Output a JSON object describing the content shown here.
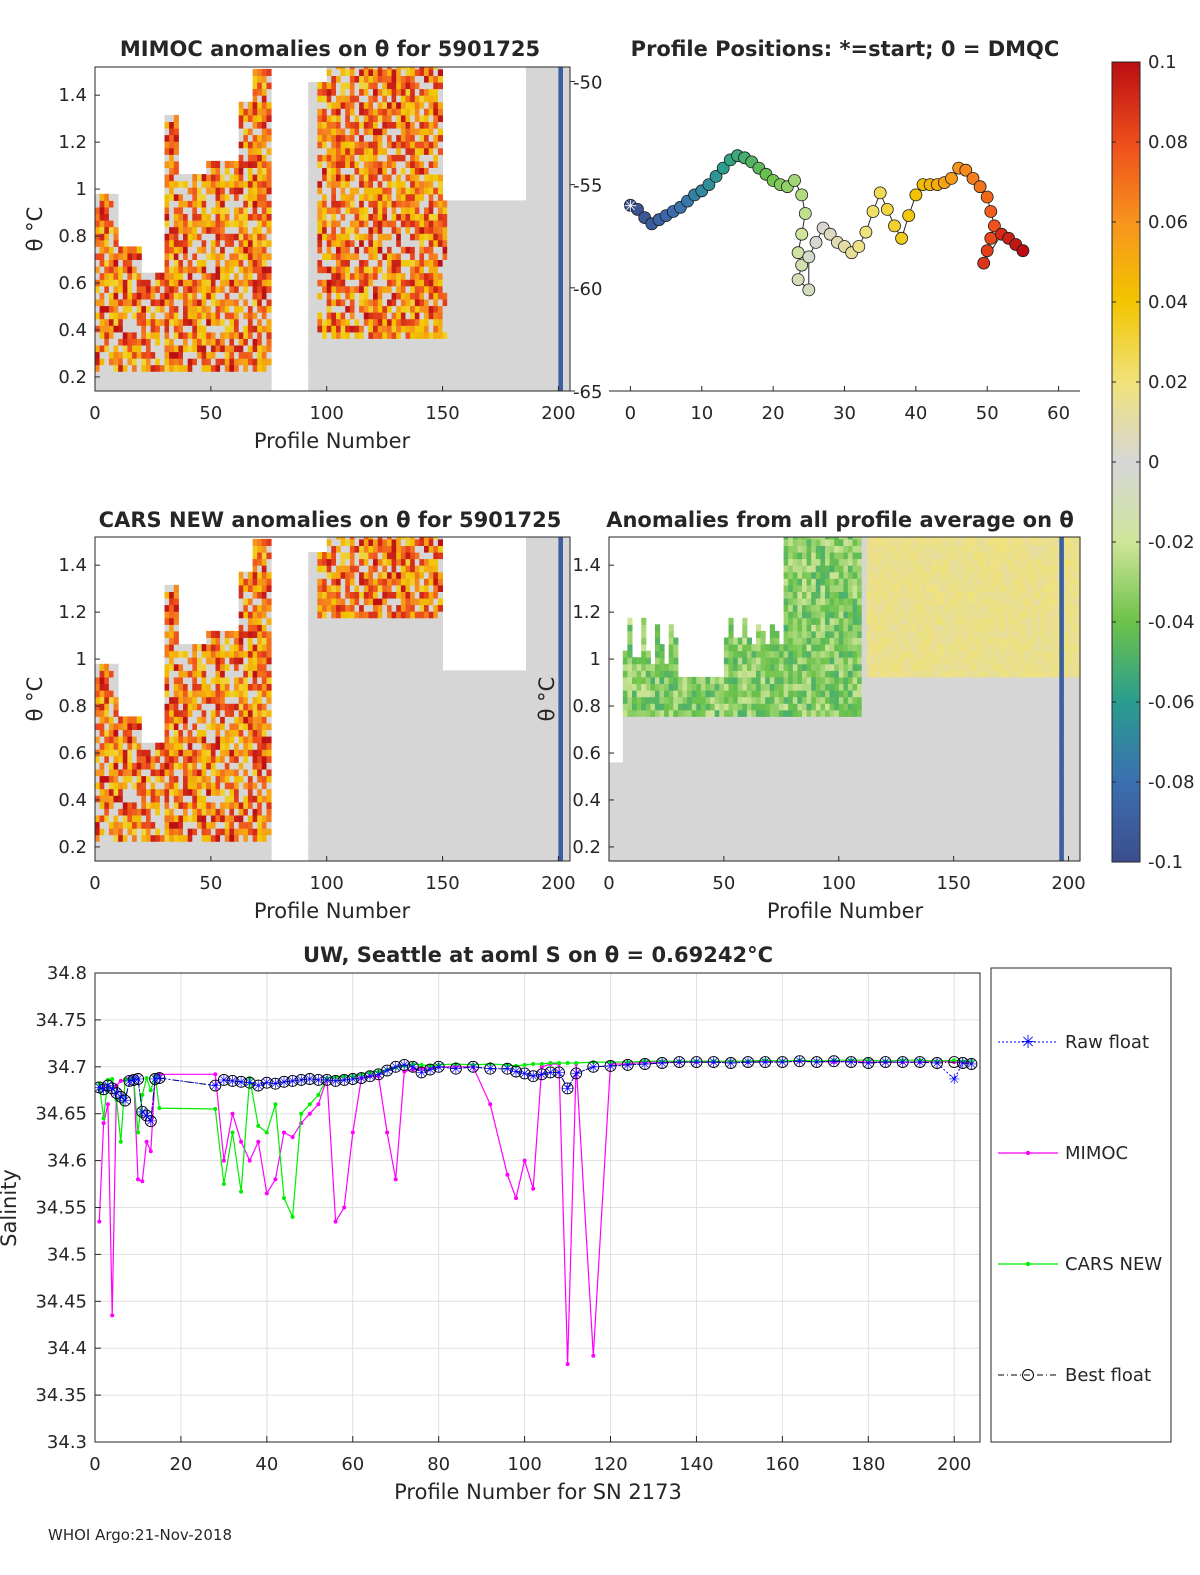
{
  "footer": "WHOI Argo:21-Nov-2018",
  "colorbar": {
    "labels": [
      "0.1",
      "0.08",
      "0.06",
      "0.04",
      "0.02",
      "0",
      "-0.02",
      "-0.04",
      "-0.06",
      "-0.08",
      "-0.1"
    ],
    "range": [
      -0.1,
      0.1
    ]
  },
  "chart_data": [
    {
      "id": "mimoc",
      "type": "heatmap",
      "title": "MIMOC anomalies on θ  for 5901725",
      "xlabel": "Profile Number",
      "ylabel": "θ °C",
      "xlim": [
        0,
        205
      ],
      "ylim": [
        0.14,
        1.52
      ],
      "xticks": [
        "0",
        "50",
        "100",
        "150",
        "200"
      ],
      "yticks": [
        "0.2",
        "0.4",
        "0.6",
        "0.8",
        "1",
        "1.2",
        "1.4"
      ]
    },
    {
      "id": "positions",
      "type": "scatter",
      "title": "Profile Positions: *=start; 0 = DMQC",
      "xlim": [
        -3,
        63
      ],
      "ylim": [
        -65,
        -49.3
      ],
      "xticks": [
        "0",
        "10",
        "20",
        "30",
        "40",
        "50",
        "60"
      ],
      "yticks": [
        "-50",
        "-55",
        "-60",
        "-65"
      ],
      "track": [
        [
          0,
          -56
        ],
        [
          1,
          -56.2
        ],
        [
          2,
          -56.6
        ],
        [
          3,
          -56.9
        ],
        [
          4,
          -56.7
        ],
        [
          5,
          -56.5
        ],
        [
          6,
          -56.3
        ],
        [
          7,
          -56.1
        ],
        [
          8,
          -55.8
        ],
        [
          9,
          -55.5
        ],
        [
          10,
          -55.3
        ],
        [
          11,
          -55.0
        ],
        [
          12,
          -54.6
        ],
        [
          13,
          -54.2
        ],
        [
          14,
          -53.8
        ],
        [
          15,
          -53.6
        ],
        [
          16,
          -53.7
        ],
        [
          17,
          -53.9
        ],
        [
          18,
          -54.2
        ],
        [
          19,
          -54.5
        ],
        [
          20,
          -54.8
        ],
        [
          21,
          -55.0
        ],
        [
          22,
          -55.1
        ],
        [
          23,
          -54.8
        ],
        [
          24,
          -55.5
        ],
        [
          24.5,
          -56.4
        ],
        [
          24,
          -57.4
        ],
        [
          23.5,
          -58.3
        ],
        [
          24,
          -58.9
        ],
        [
          23.5,
          -59.6
        ],
        [
          25,
          -60.1
        ],
        [
          25,
          -58.5
        ],
        [
          26,
          -57.8
        ],
        [
          27,
          -57.1
        ],
        [
          28,
          -57.4
        ],
        [
          29,
          -57.8
        ],
        [
          30,
          -58.0
        ],
        [
          31,
          -58.3
        ],
        [
          32,
          -58.0
        ],
        [
          33,
          -57.3
        ],
        [
          34,
          -56.3
        ],
        [
          35,
          -55.4
        ],
        [
          36,
          -56.2
        ],
        [
          37,
          -57.0
        ],
        [
          38,
          -57.6
        ],
        [
          39,
          -56.5
        ],
        [
          40,
          -55.5
        ],
        [
          41,
          -55.0
        ],
        [
          42,
          -55.0
        ],
        [
          43,
          -55.0
        ],
        [
          44,
          -54.9
        ],
        [
          45,
          -54.7
        ],
        [
          46,
          -54.2
        ],
        [
          47,
          -54.3
        ],
        [
          48,
          -54.7
        ],
        [
          49,
          -55.1
        ],
        [
          50,
          -55.6
        ],
        [
          50.5,
          -56.3
        ],
        [
          51,
          -57.0
        ],
        [
          50.5,
          -57.6
        ],
        [
          50,
          -58.2
        ],
        [
          49.5,
          -58.8
        ],
        [
          52,
          -57.4
        ],
        [
          53,
          -57.6
        ],
        [
          54,
          -57.9
        ],
        [
          55,
          -58.2
        ]
      ]
    },
    {
      "id": "cars",
      "type": "heatmap",
      "title": "CARS NEW anomalies on θ for 5901725",
      "xlabel": "Profile Number",
      "ylabel": "θ °C",
      "xlim": [
        0,
        205
      ],
      "ylim": [
        0.14,
        1.52
      ],
      "xticks": [
        "0",
        "50",
        "100",
        "150",
        "200"
      ],
      "yticks": [
        "0.2",
        "0.4",
        "0.6",
        "0.8",
        "1",
        "1.2",
        "1.4"
      ]
    },
    {
      "id": "allavg",
      "type": "heatmap",
      "title": "Anomalies from all profile average on θ",
      "xlabel": "Profile Number",
      "ylabel": "θ °C",
      "xlim": [
        0,
        205
      ],
      "ylim": [
        0.14,
        1.52
      ],
      "xticks": [
        "0",
        "50",
        "100",
        "150",
        "200"
      ],
      "yticks": [
        "0.2",
        "0.4",
        "0.6",
        "0.8",
        "1",
        "1.2",
        "1.4"
      ]
    },
    {
      "id": "salinity",
      "type": "line",
      "title": "UW, Seattle at aoml S on θ = 0.69242°C",
      "xlabel": "Profile Number for SN 2173",
      "ylabel": "Salinity",
      "xlim": [
        0,
        206
      ],
      "ylim": [
        34.3,
        34.8
      ],
      "xticks": [
        "0",
        "20",
        "40",
        "60",
        "80",
        "100",
        "120",
        "140",
        "160",
        "180",
        "200"
      ],
      "yticks": [
        "34.3",
        "34.35",
        "34.4",
        "34.45",
        "34.5",
        "34.55",
        "34.6",
        "34.65",
        "34.7",
        "34.75",
        "34.8"
      ],
      "legend": [
        "Raw float",
        "MIMOC",
        "CARS NEW",
        "Best float"
      ],
      "series": [
        {
          "name": "Raw float",
          "color": "#0000ff",
          "x": [
            1,
            2,
            3,
            4,
            5,
            6,
            7,
            8,
            9,
            10,
            11,
            12,
            13,
            14,
            15,
            28,
            30,
            32,
            34,
            36,
            38,
            40,
            42,
            44,
            46,
            48,
            50,
            52,
            54,
            56,
            58,
            60,
            62,
            64,
            66,
            68,
            70,
            72,
            74,
            76,
            78,
            80,
            84,
            88,
            92,
            96,
            98,
            100,
            102,
            104,
            106,
            108,
            110,
            112,
            116,
            120,
            124,
            128,
            132,
            136,
            140,
            144,
            148,
            152,
            156,
            160,
            164,
            168,
            172,
            176,
            180,
            184,
            188,
            192,
            196,
            200,
            202,
            204
          ],
          "y": [
            34.678,
            34.676,
            34.68,
            34.677,
            34.672,
            34.668,
            34.664,
            34.685,
            34.686,
            34.687,
            34.652,
            34.648,
            34.642,
            34.687,
            34.688,
            34.68,
            34.686,
            34.685,
            34.684,
            34.683,
            34.68,
            34.683,
            34.682,
            34.684,
            34.685,
            34.686,
            34.687,
            34.686,
            34.686,
            34.685,
            34.686,
            34.687,
            34.688,
            34.69,
            34.692,
            34.696,
            34.7,
            34.702,
            34.7,
            34.694,
            34.697,
            34.7,
            34.698,
            34.7,
            34.698,
            34.698,
            34.695,
            34.693,
            34.69,
            34.692,
            34.694,
            34.694,
            34.677,
            34.693,
            34.7,
            34.701,
            34.702,
            34.703,
            34.704,
            34.705,
            34.705,
            34.705,
            34.704,
            34.705,
            34.705,
            34.705,
            34.706,
            34.705,
            34.706,
            34.705,
            34.704,
            34.705,
            34.705,
            34.705,
            34.704,
            34.687,
            34.704,
            34.703
          ]
        },
        {
          "name": "MIMOC",
          "color": "#ff00ff",
          "x": [
            1,
            2,
            3,
            4,
            5,
            6,
            7,
            8,
            9,
            10,
            11,
            12,
            13,
            14,
            15,
            28,
            30,
            32,
            34,
            36,
            38,
            40,
            42,
            44,
            46,
            48,
            50,
            52,
            54,
            56,
            58,
            60,
            62,
            64,
            66,
            68,
            70,
            72,
            74,
            76,
            78,
            80,
            84,
            88,
            92,
            96,
            98,
            100,
            102,
            104,
            106,
            108,
            110,
            112,
            116,
            120,
            124,
            128,
            132,
            136,
            140,
            144,
            148,
            152,
            156,
            160,
            164,
            168,
            172,
            176,
            180,
            184,
            188,
            192,
            196,
            200,
            202,
            204
          ],
          "y": [
            34.535,
            34.64,
            34.66,
            34.435,
            34.68,
            34.685,
            34.686,
            34.688,
            34.689,
            34.58,
            34.578,
            34.62,
            34.61,
            34.69,
            34.692,
            34.692,
            34.6,
            34.65,
            34.62,
            34.6,
            34.62,
            34.565,
            34.58,
            34.63,
            34.625,
            34.64,
            34.65,
            34.66,
            34.688,
            34.535,
            34.55,
            34.63,
            34.688,
            34.69,
            34.69,
            34.63,
            34.58,
            34.695,
            34.697,
            34.698,
            34.699,
            34.7,
            34.7,
            34.7,
            34.66,
            34.585,
            34.56,
            34.6,
            34.57,
            34.7,
            34.703,
            34.703,
            34.383,
            34.703,
            34.392,
            34.703,
            34.703,
            34.705,
            34.705,
            34.705,
            34.705,
            34.705,
            34.706,
            34.705,
            34.706,
            34.706,
            34.706,
            34.706,
            34.705,
            34.706,
            34.705,
            34.705,
            34.705,
            34.705,
            34.706,
            34.705,
            34.705,
            34.705
          ]
        },
        {
          "name": "CARS NEW",
          "color": "#00ee00",
          "x": [
            1,
            2,
            3,
            4,
            5,
            6,
            7,
            8,
            9,
            10,
            11,
            12,
            13,
            14,
            15,
            28,
            30,
            32,
            34,
            36,
            38,
            40,
            42,
            44,
            46,
            48,
            50,
            52,
            54,
            56,
            58,
            60,
            62,
            64,
            66,
            68,
            70,
            72,
            74,
            76,
            78,
            80,
            84,
            88,
            92,
            96,
            98,
            100,
            102,
            104,
            106,
            108,
            110,
            112,
            116,
            120,
            124,
            128,
            132,
            136,
            140,
            144,
            148,
            152,
            156,
            160,
            164,
            168,
            172,
            176,
            180,
            184,
            188,
            192,
            196,
            200,
            202,
            204
          ],
          "y": [
            34.682,
            34.645,
            34.686,
            34.687,
            34.665,
            34.62,
            34.686,
            34.687,
            34.688,
            34.63,
            34.67,
            34.688,
            34.675,
            34.69,
            34.656,
            34.655,
            34.575,
            34.63,
            34.567,
            34.688,
            34.637,
            34.63,
            34.66,
            34.56,
            34.54,
            34.65,
            34.66,
            34.67,
            34.688,
            34.689,
            34.69,
            34.69,
            34.692,
            34.694,
            34.695,
            34.697,
            34.699,
            34.701,
            34.703,
            34.702,
            34.701,
            34.702,
            34.703,
            34.702,
            34.703,
            34.702,
            34.701,
            34.702,
            34.703,
            34.703,
            34.704,
            34.704,
            34.704,
            34.704,
            34.705,
            34.705,
            34.705,
            34.706,
            34.706,
            34.706,
            34.706,
            34.706,
            34.706,
            34.706,
            34.707,
            34.706,
            34.707,
            34.706,
            34.707,
            34.707,
            34.707,
            34.706,
            34.707,
            34.707,
            34.706,
            34.707,
            34.706,
            34.706
          ]
        },
        {
          "name": "Best float",
          "color": "#000000",
          "x": [
            1,
            2,
            3,
            4,
            5,
            6,
            7,
            8,
            9,
            10,
            11,
            12,
            13,
            14,
            15,
            28,
            30,
            32,
            34,
            36,
            38,
            40,
            42,
            44,
            46,
            48,
            50,
            52,
            54,
            56,
            58,
            60,
            62,
            64,
            66,
            68,
            70,
            72,
            74,
            76,
            78,
            80,
            84,
            88,
            92,
            96,
            98,
            100,
            102,
            104,
            106,
            108,
            110,
            112,
            116,
            120,
            124,
            128,
            132,
            136,
            140,
            144,
            148,
            152,
            156,
            160,
            164,
            168,
            172,
            176,
            180,
            184,
            188,
            192,
            196,
            200,
            202,
            204
          ],
          "y": [
            34.678,
            34.676,
            34.68,
            34.677,
            34.672,
            34.668,
            34.664,
            34.685,
            34.686,
            34.687,
            34.652,
            34.648,
            34.642,
            34.687,
            34.688,
            34.68,
            34.686,
            34.685,
            34.684,
            34.683,
            34.68,
            34.683,
            34.682,
            34.684,
            34.685,
            34.686,
            34.687,
            34.686,
            34.686,
            34.685,
            34.686,
            34.687,
            34.688,
            34.69,
            34.692,
            34.696,
            34.7,
            34.702,
            34.7,
            34.694,
            34.697,
            34.7,
            34.698,
            34.7,
            34.698,
            34.698,
            34.695,
            34.693,
            34.69,
            34.692,
            34.694,
            34.694,
            34.677,
            34.693,
            34.7,
            34.701,
            34.702,
            34.703,
            34.704,
            34.705,
            34.705,
            34.705,
            34.704,
            34.705,
            34.705,
            34.705,
            34.706,
            34.705,
            34.706,
            34.705,
            34.704,
            34.705,
            34.705,
            34.705,
            34.704,
            34.705,
            34.704,
            34.703
          ]
        }
      ]
    }
  ]
}
